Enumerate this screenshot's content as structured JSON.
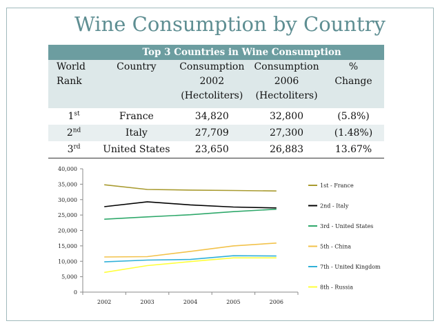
{
  "title": "Wine Consumption by Country",
  "table": {
    "caption": "Top 3 Countries in Wine Consumption",
    "headers": {
      "rank": [
        "World",
        "Rank"
      ],
      "country": [
        "Country"
      ],
      "c2002": [
        "Consumption",
        "2002",
        "(Hectoliters)"
      ],
      "c2006": [
        "Consumption",
        "2006",
        "(Hectoliters)"
      ],
      "change": [
        "%",
        "Change"
      ]
    },
    "rows": [
      {
        "rank": "1",
        "rank_suffix": "st",
        "country": "France",
        "c2002": "34,820",
        "c2006": "32,800",
        "change": "(5.8%)"
      },
      {
        "rank": "2",
        "rank_suffix": "nd",
        "country": "Italy",
        "c2002": "27,709",
        "c2006": "27,300",
        "change": "(1.48%)"
      },
      {
        "rank": "3",
        "rank_suffix": "rd",
        "country": "United States",
        "c2002": "23,650",
        "c2006": "26,883",
        "change": "13.67%"
      }
    ]
  },
  "chart_data": {
    "type": "line",
    "x": [
      "2002",
      "2003",
      "2004",
      "2005",
      "2006"
    ],
    "ylim": [
      0,
      40000
    ],
    "yticks": [
      "0",
      "5,000",
      "10,000",
      "15,000",
      "20,000",
      "25,000",
      "30,000",
      "35,000",
      "40,000"
    ],
    "grid": false,
    "legend": "right",
    "series": [
      {
        "name": "1st - France",
        "color": "#a89a2e",
        "values": [
          34820,
          33300,
          33100,
          32950,
          32800
        ]
      },
      {
        "name": "2nd - Italy",
        "color": "#000000",
        "values": [
          27709,
          29300,
          28300,
          27600,
          27300
        ]
      },
      {
        "name": "3rd - United States",
        "color": "#2ea86a",
        "values": [
          23650,
          24400,
          25100,
          26100,
          26883
        ]
      },
      {
        "name": "5th - China",
        "color": "#f2c24a",
        "values": [
          11400,
          11500,
          13200,
          15000,
          15900
        ]
      },
      {
        "name": "7th - United Kingdom",
        "color": "#2fb0d8",
        "values": [
          9800,
          10400,
          10600,
          11800,
          11700
        ]
      },
      {
        "name": "8th - Russia",
        "color": "#ffff3a",
        "values": [
          6400,
          8600,
          9900,
          11100,
          11100
        ]
      }
    ]
  }
}
